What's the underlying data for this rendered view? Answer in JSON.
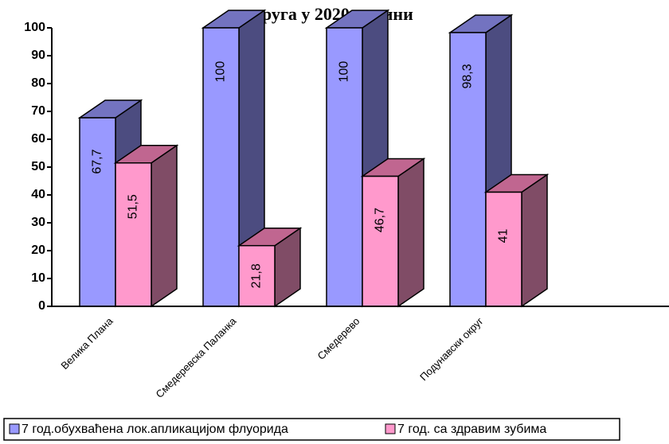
{
  "chart_data": {
    "type": "bar3d",
    "title": "округа у 2020. години",
    "categories": [
      "Велика Плана",
      "Смедеревска Паланка",
      "Смедерево",
      "Подунавски округ"
    ],
    "series": [
      {
        "name": "7 год.обухваћена лок.апликацијом флуорида",
        "color": "#9999ff",
        "side_color": "#4c4c80",
        "top_color": "#7373c0",
        "values": [
          67.7,
          100,
          100,
          98.3
        ],
        "value_labels": [
          "67,7",
          "100",
          "100",
          "98,3"
        ]
      },
      {
        "name": "7 год. са здравим зубима",
        "color": "#ff99cc",
        "side_color": "#804c66",
        "top_color": "#c06690",
        "values": [
          51.5,
          21.8,
          46.7,
          41
        ],
        "value_labels": [
          "51,5",
          "21,8",
          "46,7",
          "41"
        ]
      }
    ],
    "ylim": [
      0,
      100
    ],
    "yticks": [
      0,
      10,
      20,
      30,
      40,
      50,
      60,
      70,
      80,
      90,
      100
    ],
    "legend": "bottom"
  }
}
